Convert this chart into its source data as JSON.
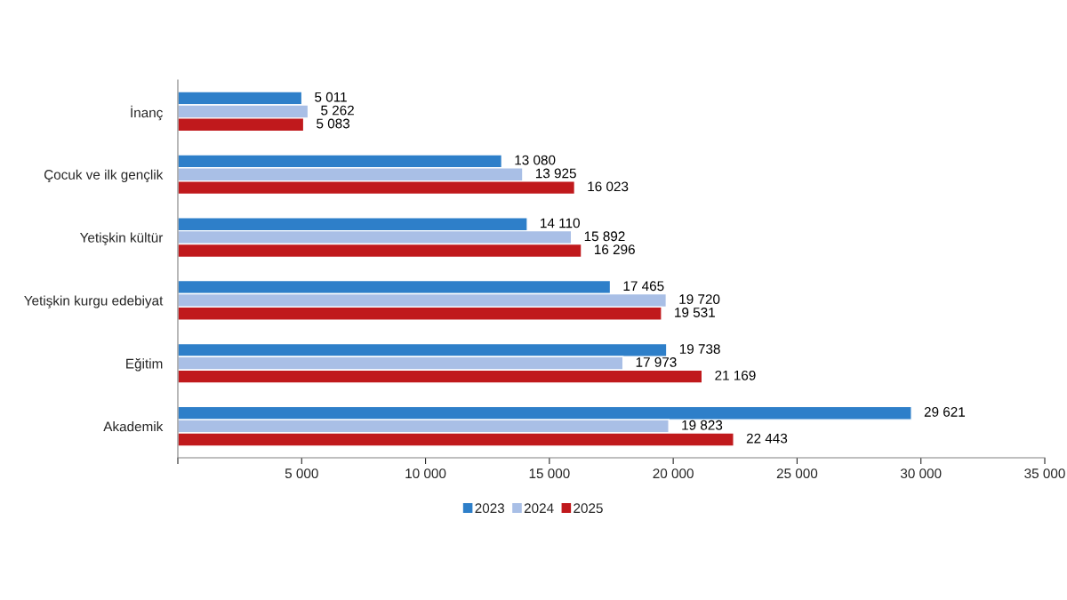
{
  "chart_data": {
    "type": "bar",
    "orientation": "horizontal",
    "categories": [
      "İnanç",
      "Çocuk ve ilk gençlik",
      "Yetişkin kültür",
      "Yetişkin kurgu edebiyat",
      "Eğitim",
      "Akademik"
    ],
    "series": [
      {
        "name": "2023",
        "color": "#2e7fc9",
        "values": [
          5011,
          13080,
          14110,
          17465,
          19738,
          29621
        ],
        "value_labels": [
          "5 011",
          "13 080",
          "14 110",
          "17 465",
          "19 738",
          "29 621"
        ]
      },
      {
        "name": "2024",
        "color": "#a9bfe6",
        "values": [
          5262,
          13925,
          15892,
          19720,
          17973,
          19823
        ],
        "value_labels": [
          "5 262",
          "13 925",
          "15 892",
          "19 720",
          "17 973",
          "19 823"
        ]
      },
      {
        "name": "2025",
        "color": "#c0191c",
        "values": [
          5083,
          16023,
          16296,
          19531,
          21169,
          22443
        ],
        "value_labels": [
          "5 083",
          "16 023",
          "16 296",
          "19 531",
          "21 169",
          "22 443"
        ]
      }
    ],
    "xlim": [
      0,
      35000
    ],
    "xticks": [
      {
        "value": 0,
        "label": null
      },
      {
        "value": 5000,
        "label": "5 000"
      },
      {
        "value": 10000,
        "label": "10 000"
      },
      {
        "value": 15000,
        "label": "15 000"
      },
      {
        "value": 20000,
        "label": "20 000"
      },
      {
        "value": 25000,
        "label": "25 000"
      },
      {
        "value": 30000,
        "label": "30 000"
      },
      {
        "value": 35000,
        "label": "35 000"
      }
    ],
    "legend": "bottom",
    "grid": false
  }
}
